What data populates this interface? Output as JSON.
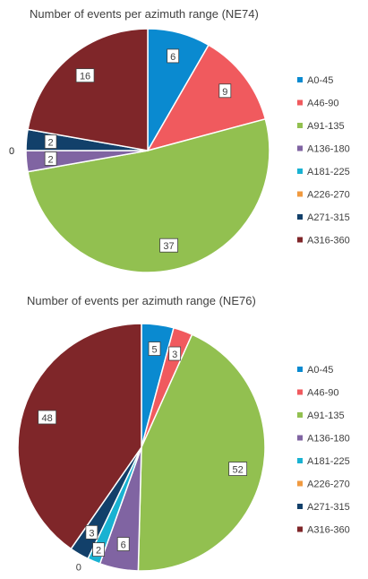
{
  "chart_data": [
    {
      "type": "pie",
      "title": "Number of events per azimuth range (NE74)",
      "categories": [
        "A0-45",
        "A46-90",
        "A91-135",
        "A136-180",
        "A181-225",
        "A226-270",
        "A271-315",
        "A316-360"
      ],
      "values": [
        6,
        9,
        37,
        2,
        0,
        0,
        2,
        16
      ],
      "legend": "right"
    },
    {
      "type": "pie",
      "title": "Number of events per azimuth range (NE76)",
      "categories": [
        "A0-45",
        "A46-90",
        "A91-135",
        "A136-180",
        "A181-225",
        "A226-270",
        "A271-315",
        "A316-360"
      ],
      "values": [
        5,
        3,
        52,
        6,
        2,
        0,
        3,
        48
      ],
      "legend": "right"
    }
  ],
  "colors": [
    "#0a8ad0",
    "#f05a5e",
    "#92c050",
    "#8064a2",
    "#19b2d2",
    "#f09a40",
    "#12406a",
    "#7f2629"
  ]
}
